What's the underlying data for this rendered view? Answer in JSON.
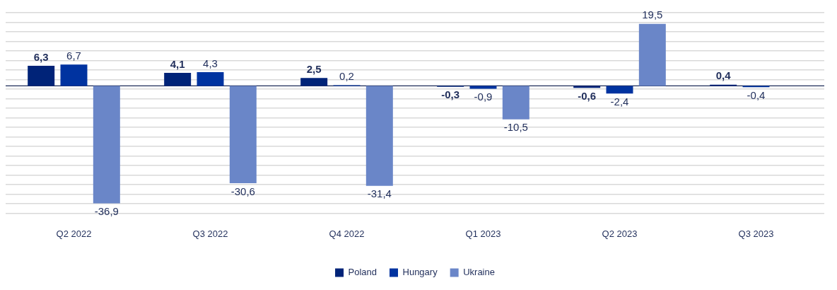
{
  "chart_data": {
    "type": "bar",
    "categories": [
      "Q2 2022",
      "Q3 2022",
      "Q4 2022",
      "Q1 2023",
      "Q2 2023",
      "Q3 2023"
    ],
    "series": [
      {
        "name": "Poland",
        "color": "#002378",
        "values": [
          6.3,
          4.1,
          2.5,
          -0.3,
          -0.6,
          0.4
        ],
        "value_labels": [
          "6,3",
          "4,1",
          "2,5",
          "-0,3",
          "-0,6",
          "0,4"
        ]
      },
      {
        "name": "Hungary",
        "color": "#0033a0",
        "values": [
          6.7,
          4.3,
          0.2,
          -0.9,
          -2.4,
          -0.4
        ],
        "value_labels": [
          "6,7",
          "4,3",
          "0,2",
          "-0,9",
          "-2,4",
          "-0,4"
        ]
      },
      {
        "name": "Ukraine",
        "color": "#6a86c8",
        "values": [
          -36.9,
          -30.6,
          -31.4,
          -10.5,
          19.5,
          null
        ],
        "value_labels": [
          "-36,9",
          "-30,6",
          "-31,4",
          "-10,5",
          "19,5",
          null
        ]
      }
    ],
    "ylim": [
      -40,
      23
    ],
    "yticks": [
      {
        "value": -40,
        "label": null
      },
      {
        "value": -37,
        "label": null
      },
      {
        "value": -34,
        "label": null
      },
      {
        "value": -31,
        "label": null
      },
      {
        "value": -28,
        "label": null
      },
      {
        "value": -25,
        "label": null
      },
      {
        "value": -22,
        "label": null
      },
      {
        "value": -19,
        "label": null
      },
      {
        "value": -16,
        "label": null
      },
      {
        "value": -13,
        "label": null
      },
      {
        "value": -10,
        "label": null
      },
      {
        "value": -7,
        "label": null
      },
      {
        "value": -4,
        "label": null
      },
      {
        "value": -1,
        "label": null
      },
      {
        "value": 2,
        "label": null
      },
      {
        "value": 5,
        "label": null
      },
      {
        "value": 8,
        "label": null
      },
      {
        "value": 11,
        "label": null
      },
      {
        "value": 14,
        "label": null
      },
      {
        "value": 17,
        "label": null
      },
      {
        "value": 20,
        "label": null
      },
      {
        "value": 23,
        "label": null
      }
    ],
    "tick_labels": "x",
    "grid": "y",
    "legend": "bottom"
  }
}
